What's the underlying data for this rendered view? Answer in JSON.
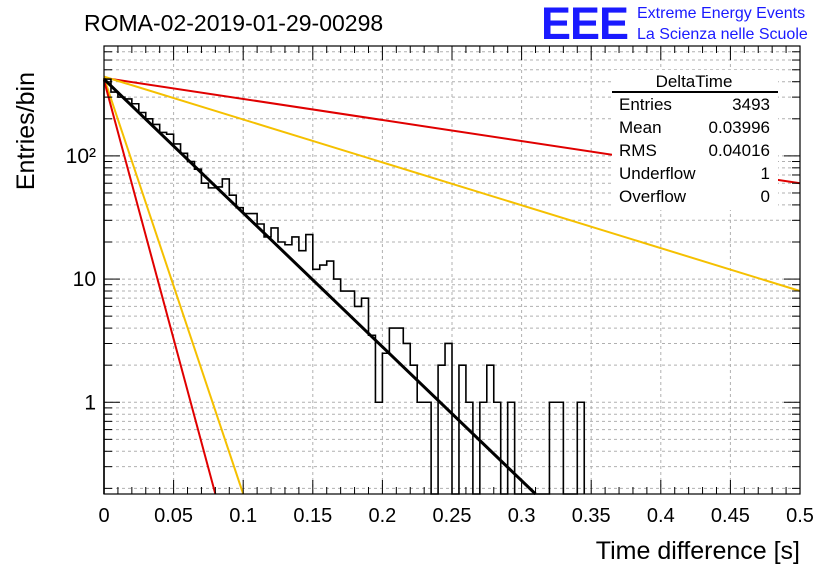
{
  "header": {
    "run_title": "ROMA-02-2019-01-29-00298",
    "logo_text": "EEE",
    "logo_line1": "Extreme Energy Events",
    "logo_line2": "La Scienza nelle Scuole"
  },
  "stats_box": {
    "title": "DeltaTime",
    "rows": [
      {
        "label": "Entries",
        "value": "3493"
      },
      {
        "label": "Mean",
        "value": "0.03996"
      },
      {
        "label": "RMS",
        "value": "0.04016"
      },
      {
        "label": "Underflow",
        "value": "1"
      },
      {
        "label": "Overflow",
        "value": "0"
      }
    ]
  },
  "colors": {
    "histogram": "#000000",
    "fit": "#000000",
    "red_band": "#e00000",
    "yellow_band": "#f5c000",
    "logo": "#1a1aff",
    "grid": "#b0b0b0"
  },
  "chart_data": {
    "type": "histogram",
    "title": "ROMA-02-2019-01-29-00298",
    "xlabel": "Time difference [s]",
    "ylabel": "Entries/bin",
    "x_range": [
      0,
      0.5
    ],
    "y_range": [
      0.18,
      780
    ],
    "y_scale": "log",
    "grid": true,
    "legend": "top-right",
    "x_ticks": [
      {
        "value": 0,
        "label": "0"
      },
      {
        "value": 0.05,
        "label": "0.05"
      },
      {
        "value": 0.1,
        "label": "0.1"
      },
      {
        "value": 0.15,
        "label": "0.15"
      },
      {
        "value": 0.2,
        "label": "0.2"
      },
      {
        "value": 0.25,
        "label": "0.25"
      },
      {
        "value": 0.3,
        "label": "0.3"
      },
      {
        "value": 0.35,
        "label": "0.35"
      },
      {
        "value": 0.4,
        "label": "0.4"
      },
      {
        "value": 0.45,
        "label": "0.45"
      },
      {
        "value": 0.5,
        "label": "0.5"
      }
    ],
    "y_ticks": [
      {
        "value": 1,
        "label": "1"
      },
      {
        "value": 10,
        "label": "10"
      },
      {
        "value": 100,
        "label": "10²"
      }
    ],
    "bin_width": 0.005,
    "histogram": [
      {
        "x": 0.0,
        "y": 420
      },
      {
        "x": 0.005,
        "y": 330
      },
      {
        "x": 0.01,
        "y": 300
      },
      {
        "x": 0.015,
        "y": 290
      },
      {
        "x": 0.02,
        "y": 265
      },
      {
        "x": 0.025,
        "y": 225
      },
      {
        "x": 0.03,
        "y": 200
      },
      {
        "x": 0.035,
        "y": 180
      },
      {
        "x": 0.04,
        "y": 155
      },
      {
        "x": 0.045,
        "y": 150
      },
      {
        "x": 0.05,
        "y": 125
      },
      {
        "x": 0.055,
        "y": 105
      },
      {
        "x": 0.06,
        "y": 90
      },
      {
        "x": 0.065,
        "y": 78
      },
      {
        "x": 0.07,
        "y": 60
      },
      {
        "x": 0.075,
        "y": 55
      },
      {
        "x": 0.08,
        "y": 56
      },
      {
        "x": 0.085,
        "y": 65
      },
      {
        "x": 0.09,
        "y": 48
      },
      {
        "x": 0.095,
        "y": 38
      },
      {
        "x": 0.1,
        "y": 34
      },
      {
        "x": 0.105,
        "y": 34
      },
      {
        "x": 0.11,
        "y": 28
      },
      {
        "x": 0.115,
        "y": 22
      },
      {
        "x": 0.12,
        "y": 26
      },
      {
        "x": 0.125,
        "y": 20
      },
      {
        "x": 0.13,
        "y": 19
      },
      {
        "x": 0.135,
        "y": 22
      },
      {
        "x": 0.14,
        "y": 17
      },
      {
        "x": 0.145,
        "y": 23
      },
      {
        "x": 0.15,
        "y": 12
      },
      {
        "x": 0.155,
        "y": 13
      },
      {
        "x": 0.16,
        "y": 14
      },
      {
        "x": 0.165,
        "y": 10
      },
      {
        "x": 0.17,
        "y": 8
      },
      {
        "x": 0.175,
        "y": 8
      },
      {
        "x": 0.18,
        "y": 6
      },
      {
        "x": 0.185,
        "y": 7
      },
      {
        "x": 0.19,
        "y": 3.5
      },
      {
        "x": 0.195,
        "y": 1
      },
      {
        "x": 0.2,
        "y": 2.5
      },
      {
        "x": 0.205,
        "y": 4
      },
      {
        "x": 0.21,
        "y": 4
      },
      {
        "x": 0.215,
        "y": 3
      },
      {
        "x": 0.22,
        "y": 2
      },
      {
        "x": 0.225,
        "y": 1
      },
      {
        "x": 0.23,
        "y": 1
      },
      {
        "x": 0.235,
        "y": 0
      },
      {
        "x": 0.24,
        "y": 2
      },
      {
        "x": 0.245,
        "y": 3
      },
      {
        "x": 0.25,
        "y": 0
      },
      {
        "x": 0.255,
        "y": 2
      },
      {
        "x": 0.26,
        "y": 1
      },
      {
        "x": 0.265,
        "y": 0
      },
      {
        "x": 0.27,
        "y": 1
      },
      {
        "x": 0.275,
        "y": 2
      },
      {
        "x": 0.28,
        "y": 1
      },
      {
        "x": 0.285,
        "y": 0
      },
      {
        "x": 0.29,
        "y": 1
      },
      {
        "x": 0.295,
        "y": 0
      },
      {
        "x": 0.3,
        "y": 0
      },
      {
        "x": 0.305,
        "y": 0
      },
      {
        "x": 0.31,
        "y": 0
      },
      {
        "x": 0.315,
        "y": 0
      },
      {
        "x": 0.32,
        "y": 1
      },
      {
        "x": 0.325,
        "y": 1
      },
      {
        "x": 0.33,
        "y": 0
      },
      {
        "x": 0.335,
        "y": 0
      },
      {
        "x": 0.34,
        "y": 1
      }
    ],
    "fit_line": {
      "x": [
        0,
        0.31
      ],
      "y": [
        420,
        0.18
      ]
    },
    "bands": [
      {
        "color": "red_band",
        "x": [
          0,
          0.5
        ],
        "y": [
          430,
          60
        ]
      },
      {
        "color": "yellow_band",
        "x": [
          0,
          0.5
        ],
        "y": [
          440,
          8
        ]
      },
      {
        "color": "yellow_band",
        "x": [
          0,
          0.1
        ],
        "y": [
          430,
          0.18
        ]
      },
      {
        "color": "red_band",
        "x": [
          0,
          0.08
        ],
        "y": [
          410,
          0.18
        ]
      }
    ]
  }
}
